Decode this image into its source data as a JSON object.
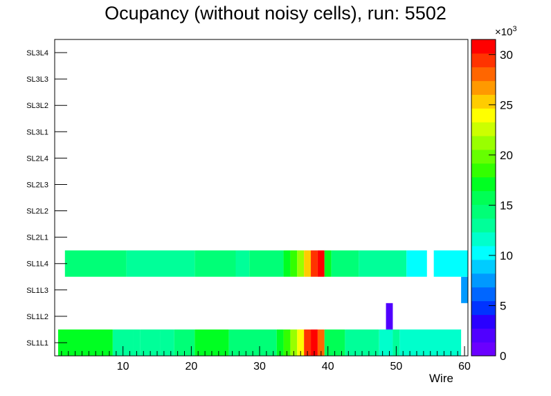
{
  "chart_data": {
    "type": "heatmap",
    "title": "Ocupancy (without noisy cells), run: 5502",
    "xlabel": "Wire",
    "ylabel": "",
    "xlim": [
      0,
      60.5
    ],
    "y_categories": [
      "SL1L1",
      "SL1L2",
      "SL1L3",
      "SL1L4",
      "SL2L1",
      "SL2L2",
      "SL2L3",
      "SL2L4",
      "SL3L1",
      "SL3L2",
      "SL3L3",
      "SL3L4"
    ],
    "x_ticks": [
      10,
      20,
      30,
      40,
      50,
      60
    ],
    "z_label": "×10³",
    "z_multiplier_base": "×10",
    "z_multiplier_exp": "3",
    "z_range": [
      0,
      31.5
    ],
    "z_ticks": [
      0,
      5,
      10,
      15,
      20,
      25,
      30
    ],
    "colormap": [
      "#6a00ff",
      "#5000ff",
      "#2a00ff",
      "#0033ff",
      "#0066ff",
      "#0099ff",
      "#00ccff",
      "#00ffff",
      "#00ffcc",
      "#00ff99",
      "#00ff77",
      "#00ff55",
      "#00ff22",
      "#33ff00",
      "#66ff00",
      "#99ff00",
      "#ccff00",
      "#ffff00",
      "#ffcc00",
      "#ff9900",
      "#ff6600",
      "#ff3300",
      "#ff0000"
    ],
    "cells": [
      {
        "layer": "SL1L1",
        "x0": 0.5,
        "x1": 8.5,
        "z": 17.0
      },
      {
        "layer": "SL1L1",
        "x0": 8.5,
        "x1": 11.5,
        "z": 13.5
      },
      {
        "layer": "SL1L1",
        "x0": 11.5,
        "x1": 12.5,
        "z": 12.5
      },
      {
        "layer": "SL1L1",
        "x0": 12.5,
        "x1": 15.5,
        "z": 13.5
      },
      {
        "layer": "SL1L1",
        "x0": 15.5,
        "x1": 17.5,
        "z": 12.5
      },
      {
        "layer": "SL1L1",
        "x0": 17.5,
        "x1": 20.5,
        "z": 14.5
      },
      {
        "layer": "SL1L1",
        "x0": 20.5,
        "x1": 25.5,
        "z": 17.0
      },
      {
        "layer": "SL1L1",
        "x0": 25.5,
        "x1": 32.5,
        "z": 14.5
      },
      {
        "layer": "SL1L1",
        "x0": 32.5,
        "x1": 33.5,
        "z": 17.0
      },
      {
        "layer": "SL1L1",
        "x0": 33.5,
        "x1": 34.5,
        "z": 18.5
      },
      {
        "layer": "SL1L1",
        "x0": 34.5,
        "x1": 35.5,
        "z": 21.0
      },
      {
        "layer": "SL1L1",
        "x0": 35.5,
        "x1": 36.5,
        "z": 24.5
      },
      {
        "layer": "SL1L1",
        "x0": 36.5,
        "x1": 37.5,
        "z": 30.0
      },
      {
        "layer": "SL1L1",
        "x0": 37.5,
        "x1": 38.5,
        "z": 31.5
      },
      {
        "layer": "SL1L1",
        "x0": 38.5,
        "x1": 39.5,
        "z": 28.0
      },
      {
        "layer": "SL1L1",
        "x0": 39.5,
        "x1": 42.5,
        "z": 15.5
      },
      {
        "layer": "SL1L1",
        "x0": 42.5,
        "x1": 47.5,
        "z": 13.5
      },
      {
        "layer": "SL1L1",
        "x0": 47.5,
        "x1": 49.5,
        "z": 11.5
      },
      {
        "layer": "SL1L1",
        "x0": 49.5,
        "x1": 50.5,
        "z": 12.5
      },
      {
        "layer": "SL1L1",
        "x0": 50.5,
        "x1": 59.5,
        "z": 11.5
      },
      {
        "layer": "SL1L2",
        "x0": 48.5,
        "x1": 49.5,
        "z": 1.5
      },
      {
        "layer": "SL1L3",
        "x0": 59.5,
        "x1": 60.5,
        "z": 7.5
      },
      {
        "layer": "SL1L4",
        "x0": 1.5,
        "x1": 10.5,
        "z": 14.5
      },
      {
        "layer": "SL1L4",
        "x0": 10.5,
        "x1": 20.5,
        "z": 13.0
      },
      {
        "layer": "SL1L4",
        "x0": 20.5,
        "x1": 26.5,
        "z": 14.5
      },
      {
        "layer": "SL1L4",
        "x0": 26.5,
        "x1": 28.5,
        "z": 13.0
      },
      {
        "layer": "SL1L4",
        "x0": 28.5,
        "x1": 33.5,
        "z": 14.5
      },
      {
        "layer": "SL1L4",
        "x0": 33.5,
        "x1": 34.5,
        "z": 17.0
      },
      {
        "layer": "SL1L4",
        "x0": 34.5,
        "x1": 35.5,
        "z": 19.0
      },
      {
        "layer": "SL1L4",
        "x0": 35.5,
        "x1": 36.5,
        "z": 21.0
      },
      {
        "layer": "SL1L4",
        "x0": 36.5,
        "x1": 37.5,
        "z": 25.0
      },
      {
        "layer": "SL1L4",
        "x0": 37.5,
        "x1": 38.5,
        "z": 29.0
      },
      {
        "layer": "SL1L4",
        "x0": 38.5,
        "x1": 39.5,
        "z": 31.5
      },
      {
        "layer": "SL1L4",
        "x0": 39.5,
        "x1": 40.5,
        "z": 17.5
      },
      {
        "layer": "SL1L4",
        "x0": 40.5,
        "x1": 44.5,
        "z": 14.5
      },
      {
        "layer": "SL1L4",
        "x0": 44.5,
        "x1": 51.5,
        "z": 12.5
      },
      {
        "layer": "SL1L4",
        "x0": 51.5,
        "x1": 54.5,
        "z": 10.5
      },
      {
        "layer": "SL1L4",
        "x0": 55.5,
        "x1": 60.5,
        "z": 10.5
      }
    ]
  }
}
